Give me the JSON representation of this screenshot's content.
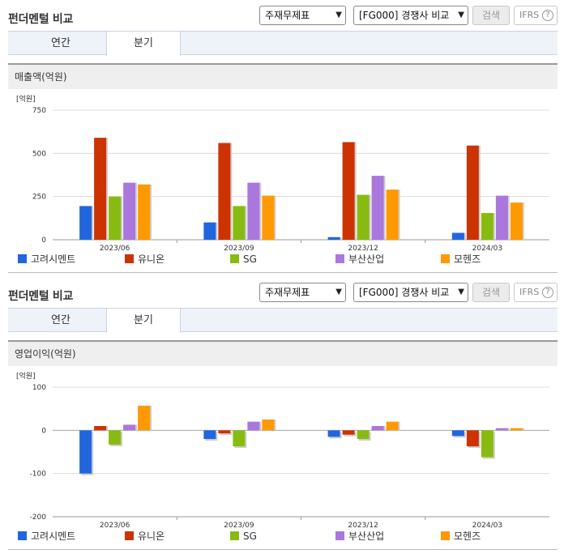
{
  "panels": [
    {
      "title": "펀더멘털 비교",
      "select1": "주재무제표",
      "select2": "[FG000] 경쟁사 비교",
      "search_label": "검색",
      "ifrs_label": "IFRS",
      "ifrs_help": "?",
      "tabs": [
        "연간",
        "분기"
      ],
      "active_tab": "분기",
      "section_title": "매출액(억원)"
    },
    {
      "title": "펀더멘털 비교",
      "select1": "주재무제표",
      "select2": "[FG000] 경쟁사 비교",
      "search_label": "검색",
      "ifrs_label": "IFRS",
      "ifrs_help": "?",
      "tabs": [
        "연간",
        "분기"
      ],
      "active_tab": "분기",
      "section_title": "영업이익(억원)"
    }
  ],
  "colors": {
    "고려시멘트": "#2266dd",
    "유니온": "#cc3300",
    "SG": "#88bb11",
    "부산산업": "#aa77dd",
    "모헨즈": "#ff9900"
  },
  "chart_data": [
    {
      "type": "bar",
      "unit": "[억원]",
      "categories": [
        "2023/06",
        "2023/09",
        "2023/12",
        "2024/03"
      ],
      "ylim": [
        0,
        750
      ],
      "yticks": [
        0,
        250,
        500,
        750
      ],
      "series": [
        {
          "name": "고려시멘트",
          "values": [
            195,
            100,
            15,
            40
          ]
        },
        {
          "name": "유니온",
          "values": [
            590,
            560,
            565,
            545
          ]
        },
        {
          "name": "SG",
          "values": [
            250,
            195,
            260,
            155
          ]
        },
        {
          "name": "부산산업",
          "values": [
            330,
            330,
            370,
            255
          ]
        },
        {
          "name": "모헨즈",
          "values": [
            320,
            255,
            290,
            215
          ]
        }
      ]
    },
    {
      "type": "bar",
      "unit": "[억원]",
      "categories": [
        "2023/06",
        "2023/09",
        "2023/12",
        "2024/03"
      ],
      "ylim": [
        -200,
        100
      ],
      "yticks": [
        100,
        0,
        -100,
        -200
      ],
      "series": [
        {
          "name": "고려시멘트",
          "values": [
            -100,
            -20,
            -15,
            -13
          ]
        },
        {
          "name": "유니온",
          "values": [
            10,
            -7,
            -10,
            -37
          ]
        },
        {
          "name": "SG",
          "values": [
            -33,
            -37,
            -20,
            -62
          ]
        },
        {
          "name": "부산산업",
          "values": [
            13,
            20,
            10,
            5
          ]
        },
        {
          "name": "모헨즈",
          "values": [
            57,
            25,
            20,
            5
          ]
        }
      ]
    }
  ]
}
